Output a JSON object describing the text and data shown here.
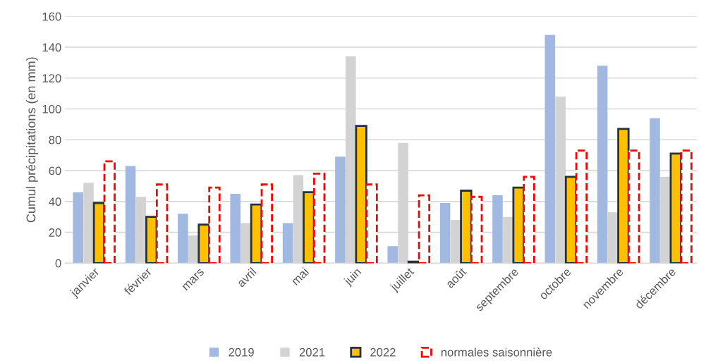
{
  "chart_data": {
    "type": "bar",
    "ylabel": "Cumul précipitations (en mm)",
    "categories": [
      "janvier",
      "février",
      "mars",
      "avril",
      "mai",
      "juin",
      "juillet",
      "août",
      "septembre",
      "octobre",
      "novembre",
      "décembre"
    ],
    "series": [
      {
        "name": "2019",
        "color": "#a1b9e0",
        "values": [
          46,
          63,
          32,
          45,
          26,
          69,
          11,
          39,
          44,
          148,
          128,
          94
        ]
      },
      {
        "name": "2021",
        "color": "#d3d3d3",
        "values": [
          52,
          43,
          18,
          26,
          57,
          134,
          78,
          28,
          30,
          108,
          33,
          56
        ]
      },
      {
        "name": "2022",
        "color": "#ffc000",
        "values": [
          39,
          30,
          25,
          38,
          46,
          89,
          1,
          47,
          49,
          56,
          87,
          71
        ]
      },
      {
        "name": "normales saisonnière",
        "color": "#ffffff",
        "values": [
          66,
          51,
          49,
          51,
          58,
          51,
          44,
          43,
          56,
          73,
          73,
          73
        ]
      }
    ],
    "ylim": [
      0,
      160
    ],
    "yticks": [
      0,
      20,
      40,
      60,
      80,
      100,
      120,
      140,
      160
    ],
    "grid": "y",
    "legend": "bottom"
  }
}
